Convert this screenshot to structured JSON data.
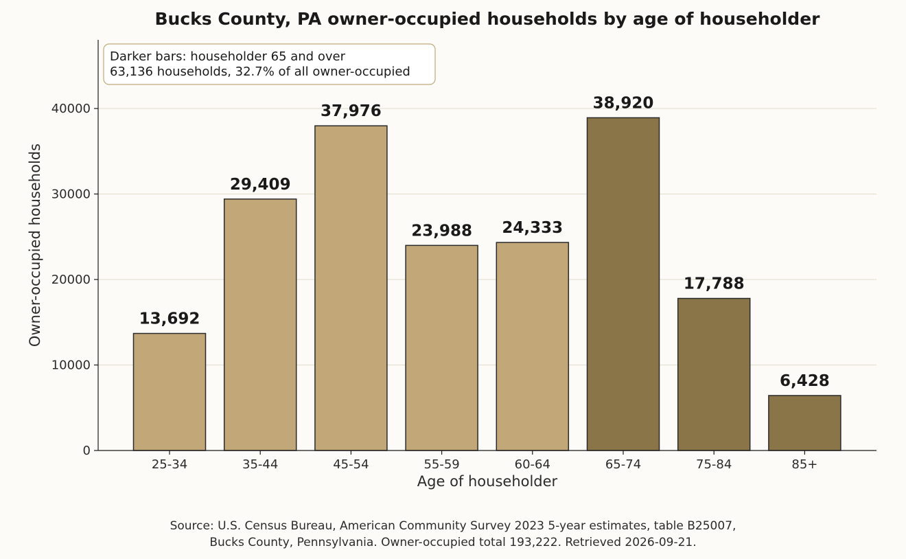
{
  "chart_data": {
    "type": "bar",
    "title": "Bucks County, PA owner-occupied households by age of householder",
    "xlabel": "Age of householder",
    "ylabel": "Owner-occupied households",
    "categories": [
      "25-34",
      "35-44",
      "45-54",
      "55-59",
      "60-64",
      "65-74",
      "75-84",
      "85+"
    ],
    "values": [
      13692,
      29409,
      37976,
      23988,
      24333,
      38920,
      17788,
      6428
    ],
    "value_labels": [
      "13,692",
      "29,409",
      "37,976",
      "23,988",
      "24,333",
      "38,920",
      "17,788",
      "6,428"
    ],
    "highlight": [
      false,
      false,
      false,
      false,
      false,
      true,
      true,
      true
    ],
    "ylim": [
      0,
      48000
    ],
    "yticks": [
      0,
      10000,
      20000,
      30000,
      40000
    ],
    "ytick_labels": [
      "0",
      "10000",
      "20000",
      "30000",
      "40000"
    ],
    "grid": true,
    "colors": {
      "base": "#c2a878",
      "highlight": "#8a7548",
      "edge": "#2a2a2a",
      "grid": "#e0dccb"
    },
    "annotation": {
      "lines": [
        "Darker bars: householder 65 and over",
        "63,136 households, 32.7% of all owner-occupied"
      ],
      "border_color": "#c2a878"
    },
    "source": [
      "Source: U.S. Census Bureau, American Community Survey 2023 5-year estimates, table B25007,",
      "Bucks County, Pennsylvania. Owner-occupied total 193,222. Retrieved 2026-09-21."
    ]
  }
}
